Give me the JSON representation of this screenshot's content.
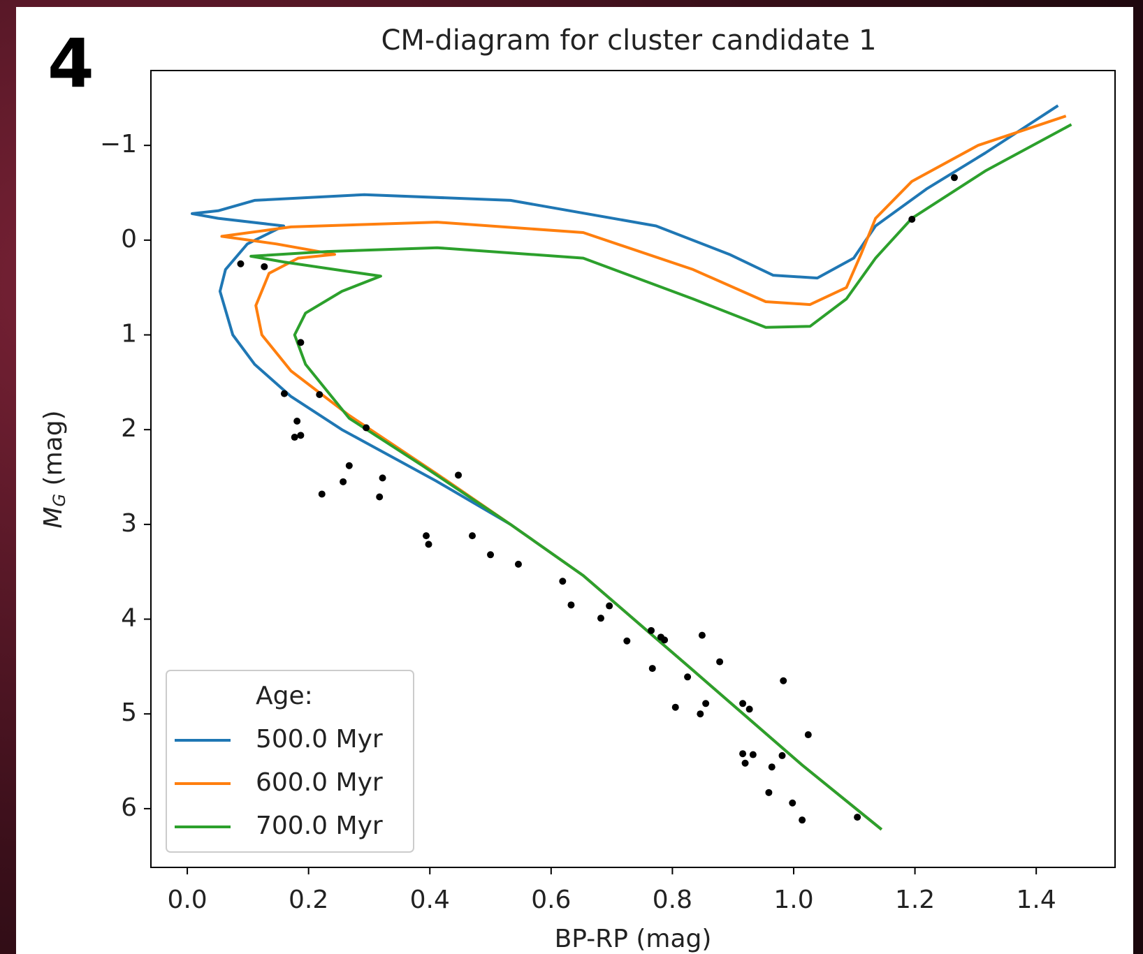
{
  "panel_label": "4",
  "chart_data": {
    "type": "line",
    "title": "CM-diagram for cluster candidate 1",
    "xlabel": "BP-RP (mag)",
    "ylabel": {
      "main": "M",
      "sub": "G",
      "rest": " (mag)"
    },
    "xlim": [
      -0.06,
      1.53
    ],
    "ylim": [
      6.62,
      -1.79
    ],
    "xticks": [
      {
        "value": 0,
        "label": "0.0"
      },
      {
        "value": 0.2,
        "label": "0.2"
      },
      {
        "value": 0.4,
        "label": "0.4"
      },
      {
        "value": 0.6,
        "label": "0.6"
      },
      {
        "value": 0.8,
        "label": "0.8"
      },
      {
        "value": 1.0,
        "label": "1.0"
      },
      {
        "value": 1.2,
        "label": "1.2"
      },
      {
        "value": 1.4,
        "label": "1.4"
      }
    ],
    "yticks": [
      {
        "value": -1,
        "label": "−1"
      },
      0,
      1,
      2,
      3,
      4,
      5,
      6
    ],
    "legend_title": "Age:",
    "legend_position": "lower left",
    "series": [
      {
        "name": "500.0 Myr",
        "color": "#1f77b4",
        "x": [
          1.145,
          1.014,
          0.834,
          0.653,
          0.533,
          0.41,
          0.255,
          0.171,
          0.111,
          0.075,
          0.054,
          0.063,
          0.099,
          0.159,
          0.051,
          0.008,
          0.051,
          0.111,
          0.292,
          0.533,
          0.773,
          0.894,
          0.966,
          1.039,
          1.099,
          1.135,
          1.219,
          1.316,
          1.436
        ],
        "values": [
          6.22,
          5.54,
          4.54,
          3.54,
          3.0,
          2.54,
          2.0,
          1.65,
          1.31,
          1.0,
          0.54,
          0.31,
          0.04,
          -0.15,
          -0.23,
          -0.28,
          -0.31,
          -0.42,
          -0.48,
          -0.42,
          -0.15,
          0.15,
          0.37,
          0.4,
          0.19,
          -0.15,
          -0.54,
          -0.92,
          -1.42
        ]
      },
      {
        "name": "600.0 Myr",
        "color": "#ff7f0e",
        "x": [
          1.145,
          1.014,
          0.834,
          0.653,
          0.533,
          0.41,
          0.267,
          0.171,
          0.123,
          0.113,
          0.135,
          0.183,
          0.243,
          0.147,
          0.057,
          0.171,
          0.412,
          0.653,
          0.834,
          0.954,
          1.027,
          1.087,
          1.111,
          1.135,
          1.195,
          1.304,
          1.449
        ],
        "values": [
          6.22,
          5.54,
          4.54,
          3.54,
          3.0,
          2.46,
          1.85,
          1.38,
          1.0,
          0.69,
          0.35,
          0.19,
          0.15,
          0.04,
          -0.04,
          -0.14,
          -0.19,
          -0.08,
          0.31,
          0.65,
          0.68,
          0.5,
          0.15,
          -0.23,
          -0.62,
          -1.0,
          -1.31
        ]
      },
      {
        "name": "700.0 Myr",
        "color": "#2ca02c",
        "x": [
          1.145,
          1.014,
          0.834,
          0.653,
          0.533,
          0.388,
          0.267,
          0.195,
          0.177,
          0.195,
          0.255,
          0.319,
          0.243,
          0.159,
          0.105,
          0.231,
          0.412,
          0.653,
          0.834,
          0.954,
          1.027,
          1.087,
          1.135,
          1.195,
          1.316,
          1.458
        ],
        "values": [
          6.22,
          5.54,
          4.54,
          3.54,
          3.0,
          2.38,
          1.88,
          1.31,
          1.0,
          0.77,
          0.54,
          0.38,
          0.31,
          0.23,
          0.17,
          0.12,
          0.08,
          0.19,
          0.62,
          0.92,
          0.91,
          0.62,
          0.19,
          -0.23,
          -0.73,
          -1.22
        ]
      }
    ],
    "scatter": {
      "color": "#000000",
      "x": [
        0.088,
        0.127,
        0.187,
        0.16,
        0.218,
        0.181,
        0.177,
        0.187,
        0.295,
        0.267,
        0.447,
        0.257,
        0.322,
        0.222,
        0.317,
        0.394,
        0.398,
        0.47,
        0.5,
        0.546,
        0.619,
        0.633,
        0.696,
        0.682,
        0.725,
        0.765,
        0.781,
        0.787,
        0.849,
        0.878,
        0.767,
        0.825,
        0.983,
        0.805,
        0.855,
        0.846,
        0.916,
        0.927,
        1.024,
        0.916,
        0.933,
        0.92,
        0.981,
        0.964,
        0.959,
        0.998,
        1.014,
        1.105,
        1.195,
        1.265
      ],
      "values": [
        0.25,
        0.28,
        1.08,
        1.62,
        1.63,
        1.91,
        2.08,
        2.06,
        1.98,
        2.38,
        2.48,
        2.55,
        2.51,
        2.68,
        2.71,
        3.12,
        3.21,
        3.12,
        3.32,
        3.42,
        3.6,
        3.85,
        3.86,
        3.99,
        4.23,
        4.12,
        4.19,
        4.22,
        4.17,
        4.45,
        4.52,
        4.61,
        4.65,
        4.93,
        4.89,
        5.0,
        4.89,
        4.95,
        5.22,
        5.42,
        5.43,
        5.52,
        5.44,
        5.56,
        5.83,
        5.94,
        6.12,
        6.09,
        -0.22,
        -0.66
      ]
    }
  }
}
